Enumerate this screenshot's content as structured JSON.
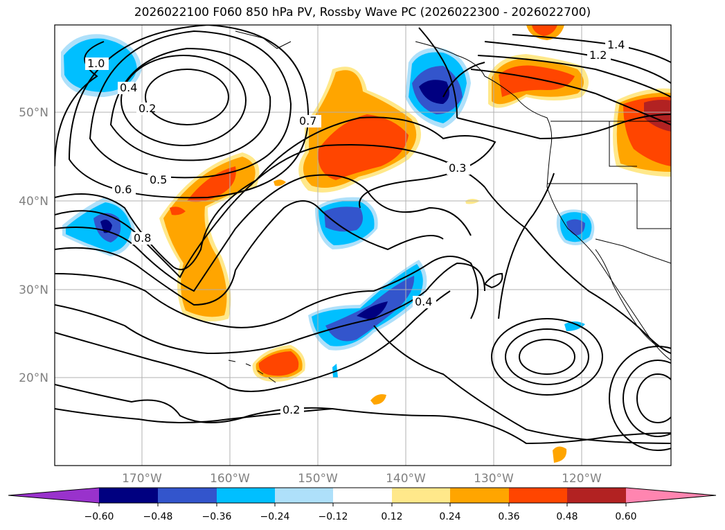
{
  "title": "2026022100 F060 850 hPa PV, Rossby Wave PC (2026022300 - 2026022700)",
  "map": {
    "lat_labels": [
      "50°N",
      "40°N",
      "30°N",
      "20°N"
    ],
    "lon_labels": [
      "170°W",
      "160°W",
      "150°W",
      "140°W",
      "130°W",
      "120°W"
    ],
    "contour_labels": [
      {
        "text": "0.2",
        "data_name": "contour-label-0.2-nw"
      },
      {
        "text": "0.4",
        "data_name": "contour-label-0.4-nw"
      },
      {
        "text": "0.5",
        "data_name": "contour-label-0.5"
      },
      {
        "text": "0.6",
        "data_name": "contour-label-0.6"
      },
      {
        "text": "0.7",
        "data_name": "contour-label-0.7"
      },
      {
        "text": "0.8",
        "data_name": "contour-label-0.8"
      },
      {
        "text": "1.0",
        "data_name": "contour-label-1.0"
      },
      {
        "text": "1.2",
        "data_name": "contour-label-1.2"
      },
      {
        "text": "1.4",
        "data_name": "contour-label-1.4"
      },
      {
        "text": "0.3",
        "data_name": "contour-label-0.3"
      },
      {
        "text": "0.4",
        "data_name": "contour-label-0.4-sub"
      },
      {
        "text": "0.2",
        "data_name": "contour-label-0.2-south"
      }
    ]
  },
  "colorbar": {
    "ticks": [
      "−0.60",
      "−0.48",
      "−0.36",
      "−0.24",
      "−0.12",
      "0.12",
      "0.24",
      "0.36",
      "0.48",
      "0.60"
    ],
    "colors": [
      "#9932cc",
      "#000080",
      "#3355cc",
      "#00bfff",
      "#aee0fa",
      "#ffffff",
      "#ffe88a",
      "#ffa500",
      "#ff4500",
      "#b22222",
      "#ff85b0"
    ]
  }
}
